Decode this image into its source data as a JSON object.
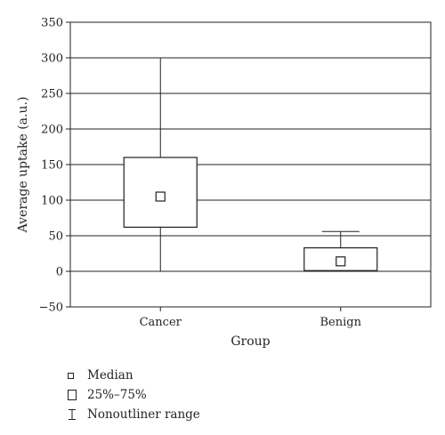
{
  "chart_data": {
    "type": "box",
    "xlabel": "Group",
    "ylabel": "Average uptake (a.u.)",
    "ylim": [
      -50,
      350
    ],
    "yticks": [
      -50,
      0,
      50,
      100,
      150,
      200,
      250,
      300,
      350
    ],
    "grid": true,
    "categories": [
      "Cancer",
      "Benign"
    ],
    "boxes": [
      {
        "category": "Cancer",
        "min": 0,
        "q1": 62,
        "median": 105,
        "q3": 160,
        "max": 300
      },
      {
        "category": "Benign",
        "min": 0,
        "q1": 1,
        "median": 14,
        "q3": 33,
        "max": 56
      }
    ],
    "legend_position": "bottom-left"
  },
  "legend": {
    "median_label": "Median",
    "box_label": "25%–75%",
    "range_label": "Nonoutliner range"
  }
}
